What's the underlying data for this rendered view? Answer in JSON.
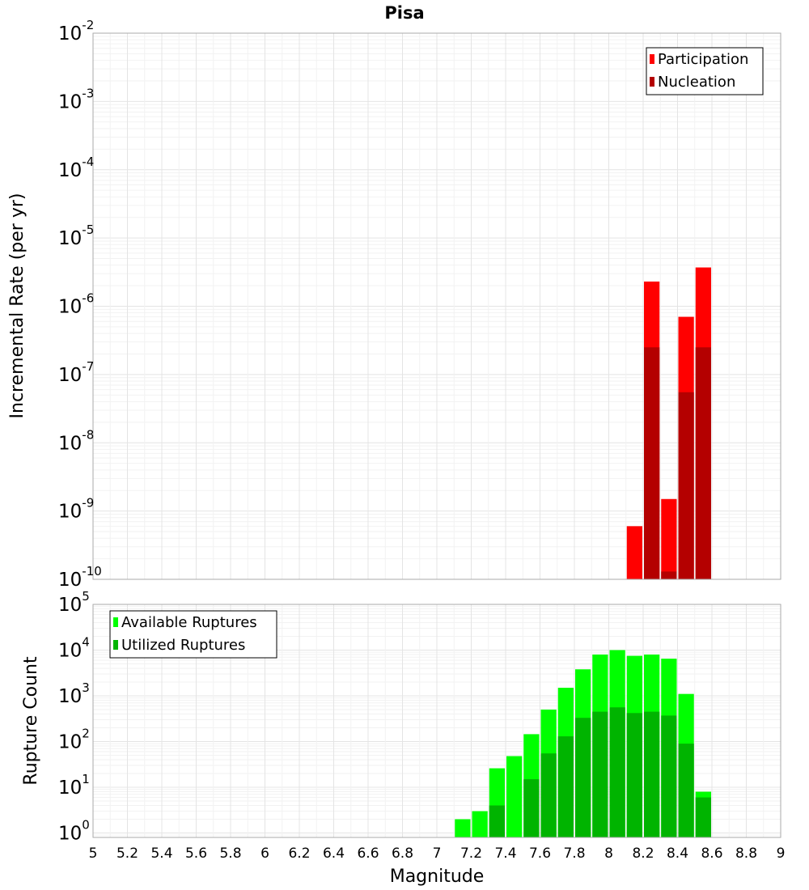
{
  "title": "Pisa",
  "xlabel": "Magnitude",
  "x_ticks": [
    "5",
    "5.2",
    "5.4",
    "5.6",
    "5.8",
    "6",
    "6.2",
    "6.4",
    "6.6",
    "6.8",
    "7",
    "7.2",
    "7.4",
    "7.6",
    "7.8",
    "8",
    "8.2",
    "8.4",
    "8.6",
    "8.8",
    "9"
  ],
  "chart_data": [
    {
      "type": "bar",
      "title": "Pisa",
      "ylabel": "Incremental Rate (per yr)",
      "xlabel": "Magnitude",
      "xlim": [
        5,
        9
      ],
      "ylim": [
        1e-10,
        0.01
      ],
      "y_scale": "log",
      "y_tick_exponents": [
        "-10",
        "-9",
        "-8",
        "-7",
        "-6",
        "-5",
        "-4",
        "-3",
        "-2"
      ],
      "bar_width": 0.1,
      "legend_position": "top-right",
      "grid": true,
      "series": [
        {
          "name": "Participation",
          "color": "#ff0000",
          "x": [
            8.15,
            8.25,
            8.35,
            8.45,
            8.55
          ],
          "values": [
            6e-10,
            2.3e-06,
            1.5e-09,
            7e-07,
            3.7e-06
          ]
        },
        {
          "name": "Nucleation",
          "color": "#b40000",
          "x": [
            8.25,
            8.35,
            8.45,
            8.55
          ],
          "values": [
            2.5e-07,
            1.3e-10,
            5.5e-08,
            2.5e-07
          ]
        }
      ]
    },
    {
      "type": "bar",
      "ylabel": "Rupture Count",
      "xlabel": "Magnitude",
      "xlim": [
        5,
        9
      ],
      "ylim": [
        0.8,
        100000.0
      ],
      "y_scale": "log",
      "y_tick_exponents": [
        "0",
        "1",
        "2",
        "3",
        "4",
        "5"
      ],
      "bar_width": 0.1,
      "legend_position": "top-left",
      "grid": true,
      "series": [
        {
          "name": "Available Ruptures",
          "color": "#00ff00",
          "x": [
            7.15,
            7.25,
            7.35,
            7.45,
            7.55,
            7.65,
            7.75,
            7.85,
            7.95,
            8.05,
            8.15,
            8.25,
            8.35,
            8.45,
            8.55
          ],
          "values": [
            2,
            3,
            26,
            48,
            145,
            500,
            1500,
            3800,
            8000,
            10000,
            7500,
            8000,
            6500,
            1100,
            8
          ]
        },
        {
          "name": "Utilized Ruptures",
          "color": "#00b400",
          "x": [
            7.35,
            7.55,
            7.65,
            7.75,
            7.85,
            7.95,
            8.05,
            8.15,
            8.25,
            8.35,
            8.45,
            8.55
          ],
          "values": [
            4,
            15,
            55,
            130,
            330,
            450,
            560,
            420,
            450,
            370,
            90,
            6
          ]
        }
      ]
    }
  ]
}
